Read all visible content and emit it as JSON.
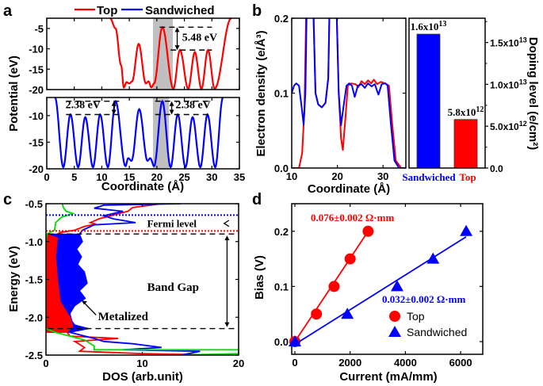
{
  "panel_labels": [
    "a",
    "b",
    "c",
    "d"
  ],
  "colors": {
    "top": "#ff0000",
    "sandwiched": "#0000ff",
    "green": "#00dd00",
    "gap_band": "#c0c0c0"
  },
  "chart_data": [
    {
      "id": "a",
      "type": "line",
      "legend": [
        {
          "name": "Top",
          "color": "#ff0000"
        },
        {
          "name": "Sandwiched",
          "color": "#0000ff"
        }
      ],
      "legend_placement": "top",
      "xlabel": "Coordinate (Å)",
      "ylabel": "Potential (eV)",
      "xlim": [
        0,
        35
      ],
      "xticks": [
        "0",
        "5",
        "10",
        "15",
        "20",
        "25",
        "30",
        "35"
      ],
      "subplots": [
        {
          "name": "Top",
          "ylim": [
            -20,
            -2.5
          ],
          "yticks": [
            "-5",
            "-10",
            "-15",
            "-20"
          ],
          "shaded_x": [
            19.3,
            22.9
          ],
          "annotation": {
            "text": "5.48 eV",
            "levels": [
              -4.7,
              -10.3
            ]
          },
          "points": [
            [
              11.5,
              -2.5
            ],
            [
              12.5,
              -5
            ],
            [
              13.5,
              -14
            ],
            [
              14,
              -19.5
            ],
            [
              14.5,
              -18.2
            ],
            [
              15,
              -18.5
            ],
            [
              15.5,
              -18
            ],
            [
              16.7,
              -8.8
            ],
            [
              18,
              -18.5
            ],
            [
              18.5,
              -18
            ],
            [
              19,
              -19.5
            ],
            [
              19.5,
              -18.5
            ],
            [
              21,
              -4.7
            ],
            [
              23,
              -19.8
            ],
            [
              24.2,
              -10.3
            ],
            [
              25.7,
              -19.8
            ],
            [
              26.9,
              -10.8
            ],
            [
              28.1,
              -19.8
            ],
            [
              29.3,
              -10.3
            ],
            [
              30.5,
              -19.8
            ],
            [
              33.5,
              -2.5
            ]
          ]
        },
        {
          "name": "Sandwiched",
          "ylim": [
            -20,
            -6.6
          ],
          "yticks": [
            "-10",
            "-15",
            "-20"
          ],
          "shaded_x": [
            19.3,
            22.2
          ],
          "annotations": [
            {
              "text": "2.38 eV",
              "levels": [
                -7.3,
                -9.8
              ]
            },
            {
              "text": "2.38 eV",
              "levels": [
                -7.3,
                -9.8
              ]
            }
          ],
          "points": [
            [
              1.5,
              -6.6
            ],
            [
              3,
              -19.7
            ],
            [
              4.3,
              -9.8
            ],
            [
              5.7,
              -19.7
            ],
            [
              7,
              -10.3
            ],
            [
              8.4,
              -19.7
            ],
            [
              9.7,
              -9.8
            ],
            [
              11.1,
              -19.7
            ],
            [
              12.5,
              -7.3
            ],
            [
              14.3,
              -19.5
            ],
            [
              14.8,
              -18
            ],
            [
              15.4,
              -18.5
            ],
            [
              16.8,
              -8.8
            ],
            [
              18.3,
              -18.5
            ],
            [
              18.8,
              -18
            ],
            [
              19.5,
              -19.5
            ],
            [
              21,
              -7.3
            ],
            [
              22.5,
              -19.7
            ],
            [
              23.8,
              -9.8
            ],
            [
              25.2,
              -19.7
            ],
            [
              26.5,
              -10.3
            ],
            [
              27.9,
              -19.7
            ],
            [
              29.2,
              -9.8
            ],
            [
              30.6,
              -19.7
            ],
            [
              32,
              -6.6
            ]
          ]
        }
      ]
    },
    {
      "id": "b",
      "type": "line",
      "xlabel": "Coordinate (Å)",
      "ylabel": "Electron density (e/Å³)",
      "xlim": [
        10,
        35
      ],
      "ylim": [
        0,
        0.2
      ],
      "xticks": [
        "10",
        "20",
        "30"
      ],
      "yticks": [
        "0.0",
        "0.1",
        "0.2"
      ],
      "series": [
        {
          "name": "Sandwiched",
          "color": "#0000ff",
          "points": [
            [
              10,
              0.1
            ],
            [
              10.5,
              0.11
            ],
            [
              11,
              0.113
            ],
            [
              11.6,
              0.11
            ],
            [
              12.2,
              0.08
            ],
            [
              12.6,
              0.058
            ],
            [
              13,
              0.1
            ],
            [
              13.3,
              0.22
            ],
            [
              14.7,
              0.22
            ],
            [
              15.2,
              0.1
            ],
            [
              15.8,
              0.085
            ],
            [
              16.6,
              0.081
            ],
            [
              17.4,
              0.087
            ],
            [
              18,
              0.12
            ],
            [
              18.3,
              0.22
            ],
            [
              19.8,
              0.22
            ],
            [
              20.3,
              0.1
            ],
            [
              20.8,
              0.057
            ],
            [
              21.3,
              0.08
            ],
            [
              22,
              0.11
            ],
            [
              22.6,
              0.113
            ],
            [
              23.2,
              0.11
            ],
            [
              23.8,
              0.095
            ],
            [
              24.5,
              0.11
            ],
            [
              25.3,
              0.112
            ],
            [
              26,
              0.107
            ],
            [
              26.7,
              0.113
            ],
            [
              27.5,
              0.109
            ],
            [
              28.2,
              0.112
            ],
            [
              29,
              0.098
            ],
            [
              29.7,
              0.112
            ],
            [
              30.5,
              0.113
            ],
            [
              31,
              0.11
            ],
            [
              31.7,
              0.06
            ],
            [
              32.5,
              0.01
            ],
            [
              33.5,
              0
            ],
            [
              35,
              0
            ]
          ]
        },
        {
          "name": "Top",
          "color": "#ff0000",
          "points": [
            [
              10,
              0
            ],
            [
              11.6,
              0
            ],
            [
              12.3,
              0.02
            ],
            [
              12.8,
              0.08
            ],
            [
              13.2,
              0.22
            ],
            [
              14.7,
              0.22
            ],
            [
              15.2,
              0.1
            ],
            [
              15.8,
              0.085
            ],
            [
              16.6,
              0.081
            ],
            [
              17.4,
              0.087
            ],
            [
              18,
              0.12
            ],
            [
              18.3,
              0.22
            ],
            [
              19.8,
              0.22
            ],
            [
              20.3,
              0.1
            ],
            [
              20.8,
              0.04
            ],
            [
              21.2,
              0.024
            ],
            [
              21.8,
              0.07
            ],
            [
              22.3,
              0.11
            ],
            [
              23,
              0.113
            ],
            [
              24,
              0.112
            ],
            [
              24.6,
              0.108
            ],
            [
              25.3,
              0.116
            ],
            [
              26,
              0.112
            ],
            [
              26.7,
              0.117
            ],
            [
              27.4,
              0.113
            ],
            [
              28,
              0.118
            ],
            [
              28.7,
              0.112
            ],
            [
              29.5,
              0.115
            ],
            [
              30.5,
              0.113
            ],
            [
              31.3,
              0.11
            ],
            [
              32,
              0.06
            ],
            [
              32.8,
              0.01
            ],
            [
              34,
              0
            ],
            [
              35,
              0
            ]
          ]
        }
      ]
    },
    {
      "id": "b-bars",
      "type": "bar",
      "ylabel": "Doping level (e/cm²)",
      "ylim": [
        0,
        17900000000000.0
      ],
      "categories": [
        "Sandwiched",
        "Top"
      ],
      "category_colors": [
        "#0000ff",
        "#ff0000"
      ],
      "values": [
        16000000000000.0,
        5800000000000.0
      ],
      "data_labels": [
        {
          "base": "1.6x10",
          "exp": "13"
        },
        {
          "base": "5.8x10",
          "exp": "12"
        }
      ],
      "yticks": [
        {
          "value": 0,
          "base": "0.0",
          "exp": ""
        },
        {
          "value": 5000000000000.0,
          "base": "5.0x10",
          "exp": "12"
        },
        {
          "value": 10000000000000.0,
          "base": "1.0x10",
          "exp": "13"
        },
        {
          "value": 15000000000000.0,
          "base": "1.5x10",
          "exp": "13"
        }
      ]
    },
    {
      "id": "c",
      "type": "area",
      "xlabel": "DOS (arb.unit)",
      "ylabel": "Energy (eV)",
      "xlim": [
        0,
        20
      ],
      "ylim": [
        -2.5,
        -0.5
      ],
      "xticks": [
        "0",
        "10",
        "20"
      ],
      "yticks": [
        "-0.5",
        "-1.0",
        "-1.5",
        "-2.0",
        "-2.5"
      ],
      "fermi_levels": {
        "sandwiched": -0.65,
        "top": -0.86
      },
      "band_edges": [
        -0.9,
        -2.15
      ],
      "annotations": {
        "fermi": "Fermi level",
        "gap": "Band Gap",
        "metal": "Metalized"
      },
      "fills": [
        {
          "color": "#0000ff",
          "points": [
            [
              0,
              -0.9
            ],
            [
              3.5,
              -0.9
            ],
            [
              3.8,
              -1.0
            ],
            [
              3.2,
              -1.1
            ],
            [
              3.7,
              -1.2
            ],
            [
              3.3,
              -1.3
            ],
            [
              4.0,
              -1.4
            ],
            [
              4.3,
              -1.55
            ],
            [
              3.5,
              -1.65
            ],
            [
              4.1,
              -1.75
            ],
            [
              3.0,
              -1.85
            ],
            [
              2.5,
              -1.95
            ],
            [
              2.7,
              -2.05
            ],
            [
              3.0,
              -2.1
            ],
            [
              4.5,
              -2.15
            ],
            [
              2.5,
              -2.2
            ],
            [
              0,
              -2.2
            ]
          ]
        },
        {
          "color": "#ff0000",
          "points": [
            [
              0,
              -0.9
            ],
            [
              1.2,
              -0.95
            ],
            [
              1.0,
              -1.2
            ],
            [
              1.2,
              -1.5
            ],
            [
              1.5,
              -1.8
            ],
            [
              2.5,
              -2.0
            ],
            [
              2.8,
              -2.12
            ],
            [
              2.2,
              -2.2
            ],
            [
              0,
              -2.2
            ]
          ]
        }
      ],
      "lines": [
        {
          "color": "#ff0000",
          "points": [
            [
              12,
              -0.5
            ],
            [
              9,
              -0.55
            ],
            [
              8.5,
              -0.6
            ],
            [
              7,
              -0.65
            ],
            [
              5.5,
              -0.7
            ],
            [
              4.6,
              -0.75
            ],
            [
              5.2,
              -0.77
            ],
            [
              4,
              -0.8
            ],
            [
              3,
              -0.85
            ],
            [
              1.5,
              -0.88
            ],
            [
              1.2,
              -0.9
            ]
          ]
        },
        {
          "color": "#ff0000",
          "points": [
            [
              2.2,
              -2.2
            ],
            [
              2.5,
              -2.25
            ],
            [
              7.5,
              -2.28
            ],
            [
              3,
              -2.32
            ],
            [
              4,
              -2.4
            ],
            [
              3.5,
              -2.45
            ],
            [
              10,
              -2.48
            ],
            [
              18.5,
              -2.5
            ]
          ]
        },
        {
          "color": "#0000ff",
          "points": [
            [
              14,
              -0.5
            ],
            [
              6,
              -0.52
            ],
            [
              5,
              -0.56
            ],
            [
              8,
              -0.6
            ],
            [
              7,
              -0.63
            ],
            [
              6,
              -0.66
            ],
            [
              7,
              -0.7
            ],
            [
              9.3,
              -0.75
            ],
            [
              5,
              -0.78
            ],
            [
              3.8,
              -0.85
            ],
            [
              3.5,
              -0.9
            ]
          ]
        },
        {
          "color": "#0000ff",
          "points": [
            [
              2.5,
              -2.2
            ],
            [
              5,
              -2.28
            ],
            [
              6,
              -2.32
            ],
            [
              9,
              -2.35
            ],
            [
              12,
              -2.4
            ],
            [
              8,
              -2.43
            ],
            [
              16,
              -2.45
            ],
            [
              14,
              -2.5
            ]
          ]
        },
        {
          "color": "#00dd00",
          "points": [
            [
              1.7,
              -0.5
            ],
            [
              1.8,
              -0.55
            ],
            [
              2.1,
              -0.6
            ],
            [
              2.8,
              -0.63
            ],
            [
              1.6,
              -0.68
            ],
            [
              1.0,
              -0.75
            ],
            [
              0.9,
              -0.85
            ],
            [
              0.1,
              -0.9
            ],
            [
              0,
              -1.0
            ],
            [
              0,
              -2.15
            ],
            [
              1,
              -2.2
            ],
            [
              4,
              -2.3
            ],
            [
              5,
              -2.38
            ],
            [
              5,
              -2.43
            ],
            [
              20,
              -2.43
            ],
            [
              20,
              -2.48
            ],
            [
              14,
              -2.5
            ]
          ]
        }
      ]
    },
    {
      "id": "d",
      "type": "scatter",
      "xlabel": "Current (mA/mm)",
      "ylabel": "Bias (V)",
      "xlim": [
        -115,
        6800
      ],
      "ylim": [
        -0.023,
        0.25
      ],
      "xticks": [
        "0",
        "2000",
        "4000",
        "6000"
      ],
      "yticks": [
        "0.0",
        "0.1",
        "0.2"
      ],
      "legend_placement": "bottom-right",
      "series": [
        {
          "name": "Top",
          "color": "#ff0000",
          "marker": "circle",
          "points": [
            [
              0,
              0
            ],
            [
              780,
              0.05
            ],
            [
              1420,
              0.1
            ],
            [
              2000,
              0.15
            ],
            [
              2650,
              0.2
            ]
          ],
          "fit": [
            [
              0,
              0
            ],
            [
              2650,
              0.2
            ]
          ],
          "label": "0.076±0.002 Ω·mm"
        },
        {
          "name": "Sandwiched",
          "color": "#0000ff",
          "marker": "triangle",
          "points": [
            [
              0,
              0
            ],
            [
              1900,
              0.05
            ],
            [
              3700,
              0.1
            ],
            [
              5000,
              0.15
            ],
            [
              6200,
              0.2
            ]
          ],
          "fit": [
            [
              0,
              -0.005
            ],
            [
              6200,
              0.19
            ]
          ],
          "label": "0.032±0.002 Ω·mm"
        }
      ]
    }
  ]
}
